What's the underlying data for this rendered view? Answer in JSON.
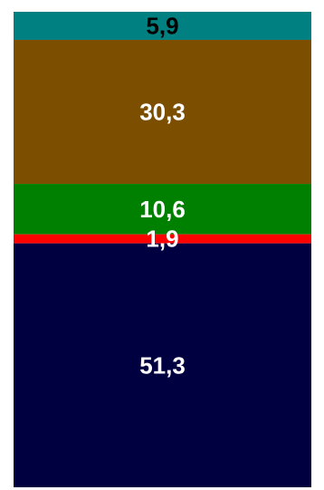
{
  "chart_data": {
    "type": "bar",
    "orientation": "vertical-stacked-100",
    "title": "",
    "xlabel": "",
    "ylabel": "",
    "grid": false,
    "legend": "none",
    "series": [
      {
        "value": 5.9,
        "label": "5,9",
        "color": "#008080",
        "label_color": "#000000"
      },
      {
        "value": 30.3,
        "label": "30,3",
        "color": "#7b4e00",
        "label_color": "#ffffff"
      },
      {
        "value": 10.6,
        "label": "10,6",
        "color": "#008000",
        "label_color": "#ffffff"
      },
      {
        "value": 1.9,
        "label": "1,9",
        "color": "#ff0000",
        "label_color": "#ffffff"
      },
      {
        "value": 51.3,
        "label": "51,3",
        "color": "#000040",
        "label_color": "#ffffff"
      }
    ]
  }
}
